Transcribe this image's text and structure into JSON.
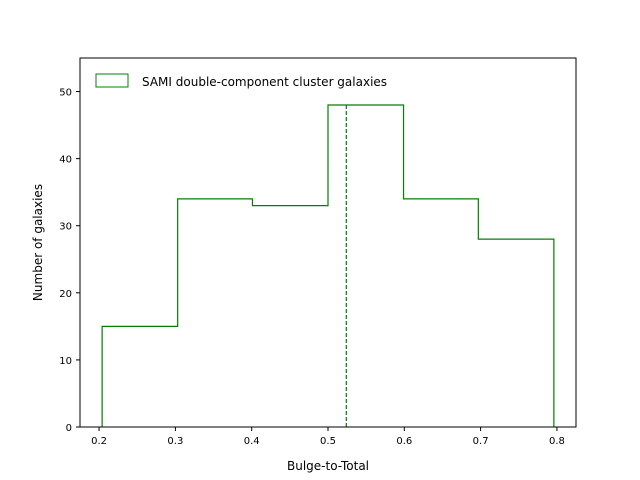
{
  "chart_data": {
    "type": "histogram",
    "xlabel": "Bulge-to-Total",
    "ylabel": "Number of galaxies",
    "xlim": [
      0.175,
      0.825
    ],
    "ylim": [
      0,
      55
    ],
    "x_ticks": [
      "0.2",
      "0.3",
      "0.4",
      "0.5",
      "0.6",
      "0.7",
      "0.8"
    ],
    "y_ticks": [
      "0",
      "10",
      "20",
      "30",
      "40",
      "50"
    ],
    "grid": false,
    "legend_position": "top-left",
    "series": [
      {
        "name": "SAMI double-component cluster galaxies",
        "color": "#008000",
        "style": "step",
        "bins": [
          {
            "x0": 0.204,
            "x1": 0.303,
            "count": 15
          },
          {
            "x0": 0.303,
            "x1": 0.401,
            "count": 34
          },
          {
            "x0": 0.401,
            "x1": 0.5,
            "count": 33
          },
          {
            "x0": 0.5,
            "x1": 0.599,
            "count": 48
          },
          {
            "x0": 0.599,
            "x1": 0.697,
            "count": 34
          },
          {
            "x0": 0.697,
            "x1": 0.796,
            "count": 28
          }
        ]
      }
    ],
    "reference_line": {
      "x": 0.524,
      "style": "dashed",
      "color": "#008000"
    }
  }
}
